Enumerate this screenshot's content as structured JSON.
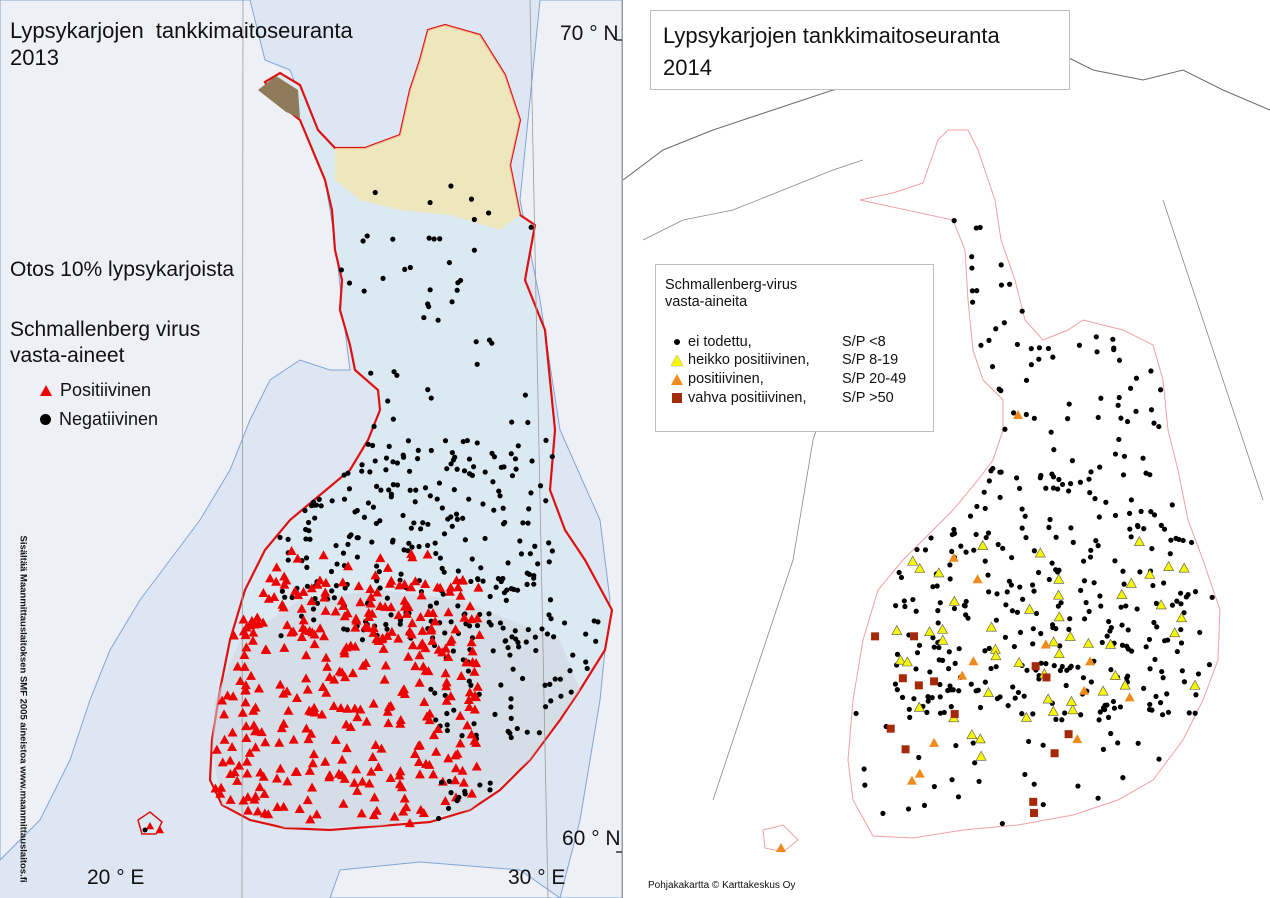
{
  "left_map": {
    "title_line1": "Lypsykarjojen  tankkimaitoseuranta",
    "title_line2": "2013",
    "lat_top": "70 ° N",
    "lat_bottom": "60 ° N",
    "lon_left": "20 ° E",
    "lon_right": "30 ° E",
    "sample_text": "Otos 10% lypsykarjoista",
    "virus_text_line1": "Schmallenberg virus",
    "virus_text_line2": "vasta-aineet",
    "legend": {
      "positive_label": "Positiivinen",
      "negative_label": "Negatiivinen",
      "positive_color": "#ee0000",
      "negative_color": "#000000"
    },
    "credit_text": "Sisältää Maanmittauslaitoksen SMF 2005 aineistoa www.maanmittauslaitos.fi",
    "border_color": "#dd1111"
  },
  "right_map": {
    "title_line1": "Lypsykarjojen tankkimaitoseuranta",
    "title_line2": "2014",
    "legend": {
      "title_line1": "Schmallenberg-virus",
      "title_line2": "vasta-aineita",
      "items": [
        {
          "label": "ei todettu,",
          "range": "S/P <8",
          "symbol": "dot",
          "color": "#000000"
        },
        {
          "label": "heikko positiivinen,",
          "range": "S/P 8-19",
          "symbol": "triangle",
          "color": "#f6f600"
        },
        {
          "label": "positiivinen,",
          "range": "S/P 20-49",
          "symbol": "triangle",
          "color": "#f08a1c"
        },
        {
          "label": "vahva positiivinen,",
          "range": "S/P  >50",
          "symbol": "square",
          "color": "#a52a0a"
        }
      ]
    },
    "credit_text": "Pohjakakartta © Karttakeskus Oy",
    "border_color": "#f4a0a0"
  }
}
